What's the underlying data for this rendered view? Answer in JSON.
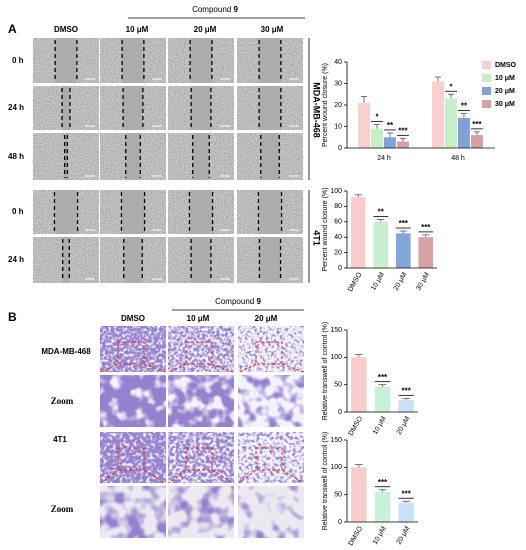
{
  "figure": {
    "panel_a": {
      "letter": "A",
      "compound_label": "Compound",
      "compound_number": "9",
      "columns": [
        "DMSO",
        "10 μM",
        "20 μM",
        "30 μM"
      ],
      "rows": [
        "0 h",
        "24 h",
        "48 h",
        "0 h",
        "24 h"
      ],
      "cell_lines": [
        "MDA-MB-468",
        "4T1"
      ]
    },
    "panel_b": {
      "letter": "B",
      "compound_label": "Compound",
      "compound_number": "9",
      "columns": [
        "DMSO",
        "10 μM",
        "20 μM"
      ],
      "rows": [
        "MDA-MB-468",
        "Zoom",
        "4T1",
        "Zoom"
      ]
    }
  },
  "chart_data": [
    {
      "type": "bar",
      "ylabel": "Percent wound closure (%)",
      "categories": [
        "24 h",
        "48 h"
      ],
      "ylim": [
        0,
        40
      ],
      "yticks": [
        0,
        10,
        20,
        30,
        40
      ],
      "legend": "right",
      "series": [
        {
          "name": "DMSO",
          "color": "#f9d0d0",
          "values": [
            21,
            31
          ],
          "errors": [
            3,
            2
          ]
        },
        {
          "name": "10 μM",
          "color": "#c6efc6",
          "values": [
            9,
            23
          ],
          "errors": [
            2,
            2
          ],
          "significance": [
            "*",
            "*"
          ]
        },
        {
          "name": "20 μM",
          "color": "#7fa3d7",
          "values": [
            5,
            14
          ],
          "errors": [
            2,
            2
          ],
          "significance": [
            "**",
            "**"
          ]
        },
        {
          "name": "30 μM",
          "color": "#d6a0a0",
          "values": [
            3,
            6
          ],
          "errors": [
            1.5,
            1.5
          ],
          "significance": [
            "***",
            "***"
          ]
        }
      ]
    },
    {
      "type": "bar",
      "ylabel": "Percent wound closure (%)",
      "categories": [
        "DMSO",
        "10 μM",
        "20 μM",
        "30 μM"
      ],
      "values": [
        92,
        60,
        45,
        40
      ],
      "errors": [
        3,
        3,
        3,
        3
      ],
      "colors": [
        "#f8cccc",
        "#c9efd0",
        "#82a6d8",
        "#d6a2a2"
      ],
      "significance": [
        null,
        "**",
        "***",
        "***"
      ],
      "ylim": [
        0,
        100
      ],
      "yticks": [
        0,
        20,
        40,
        60,
        80,
        100
      ]
    },
    {
      "type": "bar",
      "ylabel": "Relative transwell of control (%)",
      "categories": [
        "DMSO",
        "10 μM",
        "20 μM"
      ],
      "values": [
        100,
        46,
        22
      ],
      "errors": [
        5,
        4,
        3
      ],
      "colors": [
        "#f8cccc",
        "#c9f0d8",
        "#c9e2f8"
      ],
      "significance": [
        null,
        "***",
        "***"
      ],
      "ylim": [
        0,
        150
      ],
      "yticks": [
        0,
        50,
        100,
        150
      ]
    },
    {
      "type": "bar",
      "ylabel": "Relative transwell of control (%)",
      "categories": [
        "DMSO",
        "10 μM",
        "20 μM"
      ],
      "values": [
        100,
        55,
        35
      ],
      "errors": [
        5,
        4,
        3
      ],
      "colors": [
        "#f8cccc",
        "#c9f0d8",
        "#c9e2f8"
      ],
      "significance": [
        null,
        "***",
        "***"
      ],
      "ylim": [
        0,
        150
      ],
      "yticks": [
        0,
        50,
        100,
        150
      ]
    }
  ]
}
